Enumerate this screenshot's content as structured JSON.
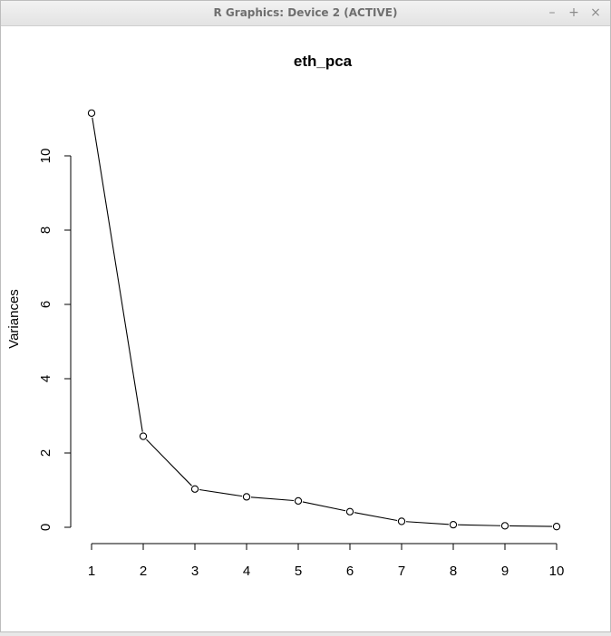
{
  "window": {
    "title": "R Graphics: Device 2 (ACTIVE)",
    "minimize_glyph": "–",
    "maximize_glyph": "+",
    "close_glyph": "×"
  },
  "chart_data": {
    "type": "line",
    "title": "eth_pca",
    "xlabel": "",
    "ylabel": "Variances",
    "x": [
      1,
      2,
      3,
      4,
      5,
      6,
      7,
      8,
      9,
      10
    ],
    "values": [
      11.15,
      2.45,
      1.03,
      0.82,
      0.71,
      0.42,
      0.16,
      0.07,
      0.04,
      0.02
    ],
    "xticks": [
      "1",
      "2",
      "3",
      "4",
      "5",
      "6",
      "7",
      "8",
      "9",
      "10"
    ],
    "yticks": [
      "0",
      "2",
      "4",
      "6",
      "8",
      "10"
    ],
    "ylim": [
      0,
      11.2
    ],
    "marker": "open-circle",
    "grid": false,
    "line_color": "#000000"
  }
}
